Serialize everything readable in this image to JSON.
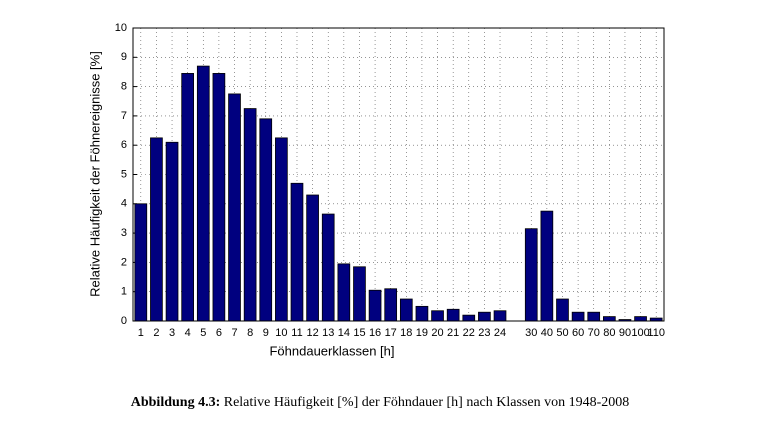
{
  "chart_data": {
    "type": "bar",
    "xlabel": "Föhndauerklassen [h]",
    "ylabel": "Relative Häufigkeit der Föhnereignisse [%]",
    "categories": [
      "1",
      "2",
      "3",
      "4",
      "5",
      "6",
      "7",
      "8",
      "9",
      "10",
      "11",
      "12",
      "13",
      "14",
      "15",
      "16",
      "17",
      "18",
      "19",
      "20",
      "21",
      "22",
      "23",
      "24",
      null,
      "30",
      "40",
      "50",
      "60",
      "70",
      "80",
      "90",
      "100",
      "110"
    ],
    "values": [
      4.0,
      6.25,
      6.1,
      8.45,
      8.7,
      8.45,
      7.75,
      7.25,
      6.9,
      6.25,
      4.7,
      4.3,
      3.65,
      1.95,
      1.85,
      1.05,
      1.1,
      0.75,
      0.5,
      0.35,
      0.4,
      0.2,
      0.3,
      0.35,
      null,
      3.15,
      3.75,
      0.75,
      0.3,
      0.3,
      0.15,
      0.05,
      0.15,
      0.1
    ],
    "color": "#00007f",
    "ylim": [
      0,
      10
    ],
    "yticks": [
      0,
      1,
      2,
      3,
      4,
      5,
      6,
      7,
      8,
      9,
      10
    ],
    "grid": true
  },
  "caption": {
    "label": "Abbildung 4.3:",
    "text": "Relative Häufigkeit [%] der Föhndauer [h] nach Klassen von 1948-2008"
  }
}
